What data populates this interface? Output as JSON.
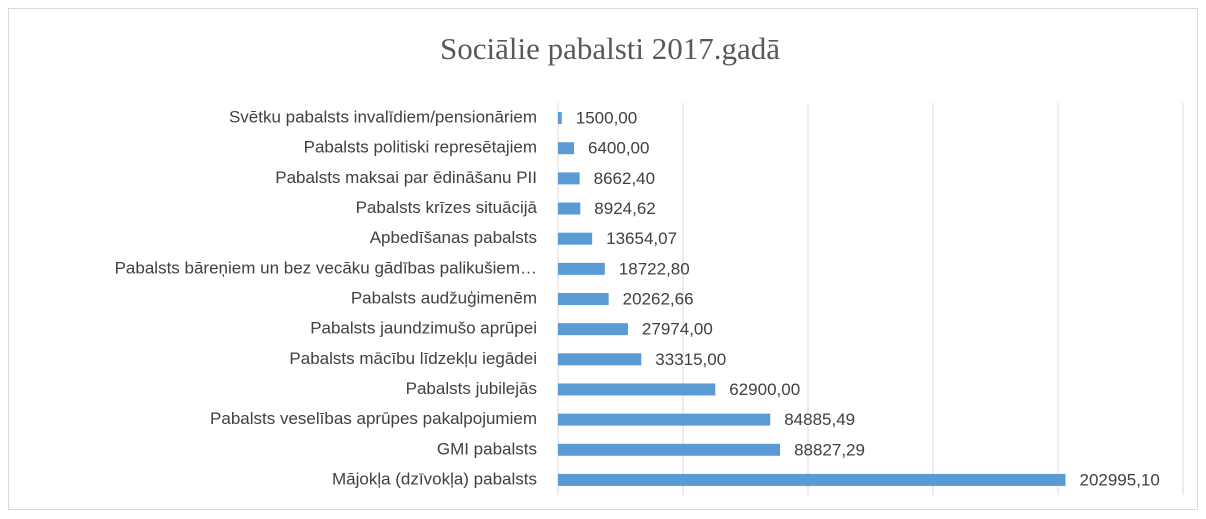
{
  "chart_data": {
    "type": "barh",
    "title": "Sociālie pabalsti 2017.gadā",
    "categories": [
      "Svētku pabalsts invalīdiem/pensionāriem",
      "Pabalsts politiski represētajiem",
      "Pabalsts maksai par ēdināšanu PII",
      "Pabalsts krīzes situācijā",
      "Apbedīšanas pabalsts",
      "Pabalsts bāreņiem un bez vecāku gādības palikušiem…",
      "Pabalsts audžuģimenēm",
      "Pabalsts jaundzimušo aprūpei",
      "Pabalsts mācību līdzekļu iegādei",
      "Pabalsts jubilejās",
      "Pabalsts veselības aprūpes pakalpojumiem ",
      "GMI pabalsts",
      "Mājokļa (dzīvokļa) pabalsts"
    ],
    "values": [
      1500,
      6400,
      8662.4,
      8924.62,
      13654.07,
      18722.8,
      20262.66,
      27974,
      33315,
      62900,
      84885.49,
      88827.29,
      202995.1
    ],
    "value_labels": [
      "1500,00",
      "6400,00",
      "8662,40",
      "8924,62",
      "13654,07",
      "18722,80",
      "20262,66",
      "27974,00",
      "33315,00",
      "62900,00",
      "84885,49",
      "88827,29",
      "202995,10"
    ],
    "color": "#5b9bd5",
    "xlim": [
      0,
      250000
    ],
    "xticks": [
      0,
      50000,
      100000,
      150000,
      200000,
      250000
    ],
    "grid": true
  }
}
